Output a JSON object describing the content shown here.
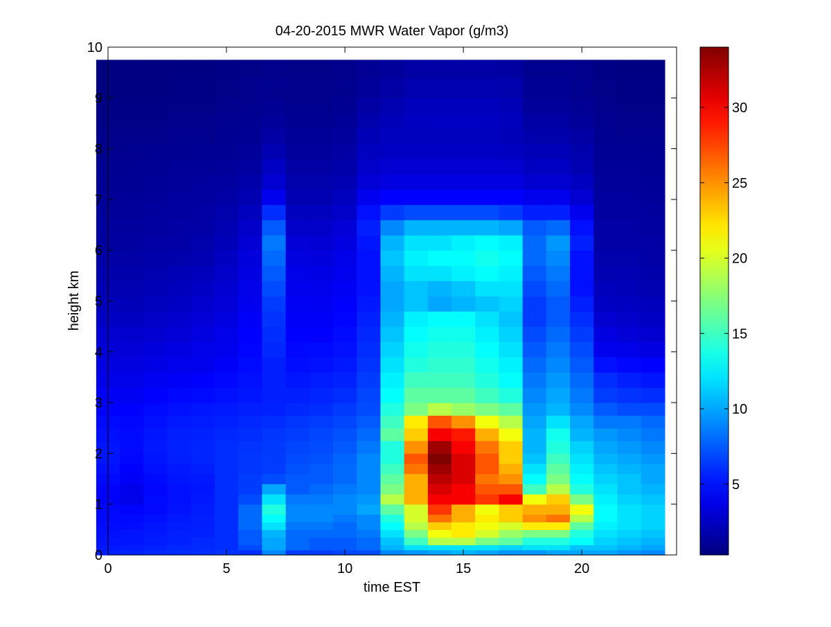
{
  "chart_data": {
    "type": "heatmap",
    "title": "04-20-2015 MWR Water Vapor (g/m3)",
    "xlabel": "time EST",
    "ylabel": "height km",
    "xlim": [
      0,
      24
    ],
    "ylim": [
      0,
      10
    ],
    "xticks": [
      0,
      5,
      10,
      15,
      20
    ],
    "yticks": [
      0,
      1,
      2,
      3,
      4,
      5,
      6,
      7,
      8,
      9,
      10
    ],
    "colorbar": {
      "range": [
        0.3,
        34
      ],
      "ticks": [
        5,
        10,
        15,
        20,
        25,
        30
      ],
      "colormap": "jet"
    },
    "x_centers": [
      0,
      1,
      2,
      3,
      4,
      5,
      6,
      7,
      8,
      9,
      10,
      11,
      12,
      13,
      14,
      15,
      16,
      17,
      18,
      19,
      20,
      21,
      22,
      23
    ],
    "y_edges": [
      0,
      0.1,
      0.2,
      0.35,
      0.5,
      0.65,
      0.8,
      1,
      1.2,
      1.4,
      1.6,
      1.8,
      2,
      2.25,
      2.5,
      2.75,
      3,
      3.3,
      3.6,
      3.9,
      4.2,
      4.5,
      4.8,
      5.1,
      5.4,
      5.7,
      6,
      6.3,
      6.6,
      6.9,
      7.2,
      7.5,
      7.8,
      8.1,
      8.4,
      8.7,
      9,
      9.4,
      9.75
    ],
    "values": [
      [
        5.5,
        5.6,
        5.8,
        5.9,
        6,
        6.2,
        6,
        9,
        6.5,
        6.5,
        6.8,
        7,
        9,
        9.5,
        10,
        10.5,
        10,
        9.5,
        9.5,
        10,
        10,
        10,
        9.5,
        9
      ],
      [
        5.3,
        5.4,
        5.6,
        5.8,
        5.9,
        6,
        7,
        10,
        8,
        7.5,
        7.5,
        8,
        10.5,
        12,
        12,
        12,
        12,
        11.5,
        12,
        12,
        11,
        11,
        10.5,
        10
      ],
      [
        5.1,
        5.2,
        5.4,
        5.6,
        5.8,
        6,
        7.5,
        10,
        8,
        7.5,
        7.5,
        8,
        11,
        15,
        19,
        19,
        17,
        16,
        14,
        14,
        13,
        11.5,
        11,
        10.5
      ],
      [
        5,
        5.1,
        5.3,
        5.5,
        5.6,
        6,
        7.5,
        10.5,
        8,
        8,
        8,
        8.5,
        12,
        17,
        21,
        22,
        20,
        18,
        17,
        17,
        14,
        12,
        11.5,
        11
      ],
      [
        4.9,
        4.9,
        5.2,
        5.4,
        5.5,
        6,
        8,
        12,
        8.5,
        8.5,
        8,
        9,
        13,
        19,
        23,
        22,
        21,
        20,
        22,
        22,
        16,
        12.5,
        12,
        11.5
      ],
      [
        4.8,
        4.8,
        5,
        5.3,
        5.5,
        6,
        8,
        13,
        9,
        9,
        8.5,
        9,
        14,
        20,
        26,
        24,
        22,
        23,
        25,
        26,
        19,
        13,
        12,
        11.5
      ],
      [
        4.7,
        4.6,
        4.8,
        5.1,
        5.4,
        6,
        8,
        14,
        9,
        9,
        9,
        10,
        16,
        20,
        28,
        24,
        21,
        23,
        24,
        24,
        21,
        13,
        12,
        11.5
      ],
      [
        4.5,
        3.8,
        4.8,
        5,
        5.3,
        6,
        7,
        12,
        8.5,
        8.5,
        9,
        9.5,
        19,
        24,
        30,
        30,
        28,
        30,
        21,
        23,
        17,
        12.5,
        11.5,
        11
      ],
      [
        4.6,
        3.9,
        4.7,
        5,
        5.2,
        6,
        6.5,
        10,
        7.5,
        8,
        8.5,
        9,
        17,
        24,
        31,
        30,
        27,
        27,
        15,
        19,
        14,
        12,
        11,
        10.5
      ],
      [
        4.8,
        4.3,
        4.8,
        5.2,
        5.3,
        6,
        6.5,
        7,
        7.5,
        7.5,
        8,
        9,
        16,
        24,
        32,
        31,
        26,
        25,
        13,
        17,
        13,
        11.5,
        11,
        10
      ],
      [
        5,
        4.5,
        5,
        5.3,
        5.5,
        6,
        6.3,
        6.5,
        7.2,
        7.5,
        8,
        9,
        15,
        26,
        33,
        31,
        27,
        24,
        12,
        16,
        12.5,
        11,
        10.5,
        10
      ],
      [
        5.2,
        4.7,
        5.2,
        5.5,
        5.7,
        6,
        6.3,
        6.5,
        7,
        7.2,
        7.8,
        9,
        14,
        27,
        34,
        31,
        27,
        23,
        11,
        15,
        12,
        10.5,
        10,
        9.5
      ],
      [
        5.2,
        4.8,
        5.3,
        5.6,
        5.7,
        6,
        6.2,
        6.4,
        6.8,
        7,
        7.5,
        8.5,
        14,
        25,
        33,
        30,
        26,
        23,
        10.5,
        14,
        11.5,
        10,
        9.5,
        9
      ],
      [
        5,
        4.8,
        5.2,
        5.5,
        5.6,
        5.8,
        6,
        6.3,
        6.5,
        6.8,
        7.2,
        8,
        16,
        23,
        30,
        29,
        24,
        21,
        10.5,
        13.5,
        10.5,
        9.5,
        9,
        8.5
      ],
      [
        4.8,
        4.7,
        5,
        5.3,
        5.4,
        5.6,
        5.8,
        6,
        6.3,
        6.5,
        6.8,
        7.5,
        15,
        22,
        27,
        25,
        21,
        19,
        10,
        12,
        10,
        8.5,
        8.5,
        8
      ],
      [
        4.5,
        4.4,
        4.8,
        5,
        5.2,
        5.3,
        5.5,
        5.6,
        5.8,
        6,
        6.4,
        7,
        14,
        17,
        19,
        18,
        17,
        16,
        9.5,
        10.5,
        9,
        7.5,
        7,
        7
      ],
      [
        4.2,
        4.1,
        4.5,
        4.7,
        4.8,
        5,
        5.2,
        5.5,
        5.5,
        5.7,
        6,
        6.8,
        13,
        16,
        16,
        16,
        15,
        14,
        9,
        10,
        8.5,
        6.5,
        6.2,
        6
      ],
      [
        3.8,
        3.8,
        4.1,
        4.3,
        4.5,
        4.7,
        5,
        5.5,
        5.2,
        5.4,
        5.6,
        6.5,
        12.5,
        15,
        15,
        15,
        14,
        13,
        8.5,
        9.5,
        8,
        6,
        5.5,
        5.2
      ],
      [
        3.5,
        3.5,
        3.7,
        3.9,
        4,
        4.3,
        4.8,
        5.5,
        4.9,
        5,
        5.3,
        6.2,
        12,
        14,
        14.5,
        14.5,
        13.5,
        12.5,
        8,
        9,
        7.5,
        5,
        4.7,
        4.5
      ],
      [
        3.2,
        3.2,
        3.4,
        3.6,
        3.8,
        4,
        4.6,
        5.8,
        4.7,
        4.8,
        5,
        6,
        11.5,
        13.5,
        14,
        14,
        13,
        12,
        7.5,
        8.5,
        7,
        4,
        3.8,
        3.6
      ],
      [
        3,
        2.9,
        3,
        3.2,
        3.5,
        3.8,
        4.5,
        6,
        4.5,
        4.5,
        4.8,
        5.8,
        11,
        13,
        13.5,
        13.5,
        12.5,
        11.5,
        7,
        8,
        6.5,
        3.5,
        3.2,
        3
      ],
      [
        2.6,
        2.5,
        2.7,
        2.9,
        3.2,
        3.5,
        4.3,
        6.2,
        4.3,
        4.3,
        4.6,
        5.6,
        10.5,
        12.5,
        13,
        13,
        12,
        11,
        6.5,
        7.5,
        6,
        3,
        2.8,
        2.6
      ],
      [
        2.3,
        2.2,
        2.4,
        2.6,
        2.9,
        3.2,
        4,
        6.5,
        4.2,
        4.1,
        4.4,
        5.3,
        10,
        11,
        10,
        10.5,
        11,
        11.5,
        6.5,
        7.5,
        5.5,
        2.6,
        2.5,
        2.3
      ],
      [
        2,
        2,
        2.1,
        2.3,
        2.6,
        3,
        3.8,
        7,
        4,
        3.9,
        4.2,
        5,
        10,
        11,
        10.5,
        11,
        12,
        12,
        7,
        8,
        5,
        2.3,
        2.2,
        2
      ],
      [
        1.8,
        1.8,
        1.9,
        2.1,
        2.3,
        2.8,
        3.6,
        7.5,
        3.8,
        3.7,
        4,
        5,
        10.5,
        12,
        12,
        12.5,
        13,
        12.5,
        7.5,
        8.5,
        5,
        2,
        2,
        1.8
      ],
      [
        1.6,
        1.6,
        1.7,
        1.8,
        2,
        2.5,
        3.4,
        8,
        3.5,
        3.4,
        3.8,
        5,
        11,
        12.5,
        13,
        13,
        13.5,
        13,
        8,
        9,
        5,
        1.8,
        1.8,
        1.6
      ],
      [
        1.4,
        1.4,
        1.5,
        1.6,
        1.8,
        2.2,
        3.1,
        8.5,
        3.2,
        3.1,
        3.5,
        5.2,
        10.5,
        12,
        12,
        12.5,
        13,
        12.5,
        8,
        9.5,
        5.5,
        1.6,
        1.6,
        1.5
      ],
      [
        1.3,
        1.3,
        1.4,
        1.5,
        1.6,
        2,
        2.8,
        7.5,
        2.8,
        2.8,
        3.2,
        5.5,
        9,
        10.5,
        10.5,
        10.5,
        10.5,
        10,
        7.5,
        8,
        5,
        1.5,
        1.5,
        1.4
      ],
      [
        1.2,
        1.2,
        1.3,
        1.4,
        1.5,
        1.8,
        2.4,
        6,
        2.4,
        2.4,
        2.8,
        5,
        6.5,
        7,
        7,
        7,
        7,
        6.5,
        5.5,
        5.5,
        4,
        1.4,
        1.4,
        1.3
      ],
      [
        1.1,
        1.1,
        1.2,
        1.3,
        1.4,
        1.6,
        2,
        4,
        2,
        2,
        2.4,
        4,
        4.5,
        4.5,
        4.5,
        4.5,
        4.5,
        4.5,
        4,
        4,
        3,
        1.3,
        1.3,
        1.2
      ],
      [
        1,
        1,
        1.1,
        1.2,
        1.3,
        1.4,
        1.7,
        3,
        1.8,
        1.8,
        2,
        3.2,
        3.5,
        3.5,
        3.5,
        3.5,
        3.5,
        3.5,
        3,
        3,
        2.5,
        1.2,
        1.2,
        1.1
      ],
      [
        0.9,
        0.9,
        1,
        1.1,
        1.1,
        1.2,
        1.4,
        2.5,
        1.5,
        1.5,
        1.7,
        2.8,
        3,
        3,
        3,
        3,
        3,
        3,
        2.5,
        2.5,
        2,
        1.1,
        1.1,
        1
      ],
      [
        0.8,
        0.8,
        0.9,
        0.9,
        1,
        1,
        1.2,
        2,
        1.3,
        1.3,
        1.5,
        2.4,
        2.6,
        2.6,
        2.6,
        2.6,
        2.6,
        2.5,
        2.2,
        2.2,
        1.8,
        1,
        1,
        0.9
      ],
      [
        0.7,
        0.7,
        0.7,
        0.8,
        0.8,
        0.9,
        1,
        1.5,
        1.1,
        1.1,
        1.3,
        2.1,
        2.4,
        2.4,
        2.4,
        2.4,
        2.4,
        2.2,
        1.8,
        1.8,
        1.5,
        0.9,
        0.8,
        0.8
      ],
      [
        0.6,
        0.6,
        0.6,
        0.7,
        0.7,
        0.8,
        0.9,
        1.2,
        0.9,
        0.9,
        1.1,
        1.8,
        2.2,
        2.5,
        2.6,
        2.6,
        2.5,
        2.3,
        1.5,
        1.5,
        1.2,
        0.8,
        0.7,
        0.7
      ],
      [
        0.5,
        0.5,
        0.5,
        0.6,
        0.6,
        0.7,
        0.8,
        1,
        0.8,
        0.8,
        0.9,
        1.5,
        1.9,
        2.3,
        2.3,
        2.3,
        2.3,
        2.1,
        1.2,
        1.2,
        1,
        0.7,
        0.6,
        0.6
      ],
      [
        0.4,
        0.4,
        0.4,
        0.5,
        0.5,
        0.6,
        0.7,
        0.8,
        0.7,
        0.7,
        0.8,
        1.2,
        1.5,
        1.9,
        1.9,
        1.9,
        1.9,
        1.8,
        1,
        1,
        0.8,
        0.6,
        0.5,
        0.5
      ],
      [
        0.3,
        0.3,
        0.3,
        0.4,
        0.4,
        0.5,
        0.6,
        0.7,
        0.6,
        0.6,
        0.7,
        1,
        1.2,
        1.5,
        1.5,
        1.5,
        1.5,
        1.4,
        0.8,
        0.8,
        0.7,
        0.5,
        0.4,
        0.4
      ]
    ]
  }
}
